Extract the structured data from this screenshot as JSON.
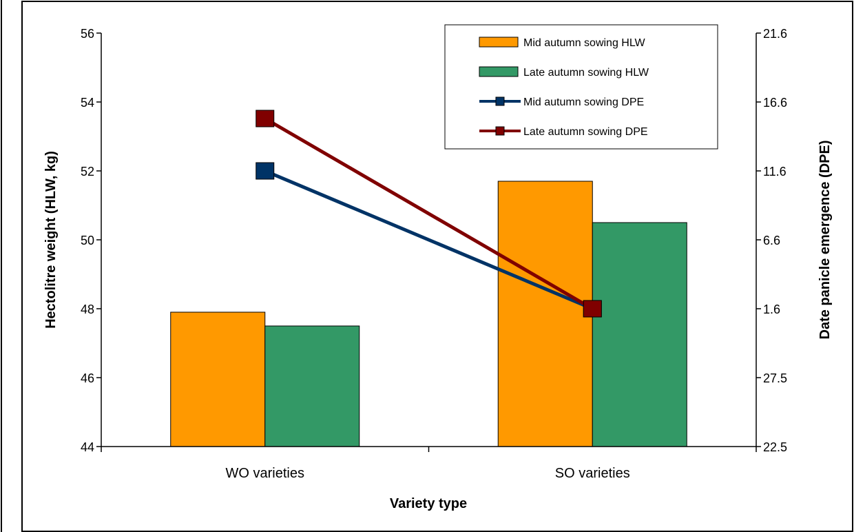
{
  "chart_data": {
    "type": "bar",
    "categories": [
      "WO varieties",
      "SO varieties"
    ],
    "xlabel": "Variety type",
    "ylabel": "Hectolitre weight (HLW, kg)",
    "y2label": "Date panicle emergence (DPE)",
    "ylim": [
      44,
      56
    ],
    "yticks": [
      "44",
      "46",
      "48",
      "50",
      "52",
      "54",
      "56"
    ],
    "y2ticks": [
      "22.5",
      "27.5",
      "1.6",
      "6.6",
      "11.6",
      "16.6",
      "21.6"
    ],
    "grid": false,
    "legend_position": "top-right",
    "bar_series": [
      {
        "name": "Mid autumn sowing HLW",
        "values": [
          47.9,
          51.7
        ],
        "color": "#FF9900"
      },
      {
        "name": "Late autumn sowing HLW",
        "values": [
          47.5,
          50.5
        ],
        "color": "#339966"
      }
    ],
    "line_series": [
      {
        "name": "Mid autumn sowing DPE",
        "values": [
          11.6,
          1.6
        ],
        "color": "#003366"
      },
      {
        "name": "Late autumn sowing DPE",
        "values": [
          15.4,
          1.6
        ],
        "color": "#800000"
      }
    ]
  }
}
